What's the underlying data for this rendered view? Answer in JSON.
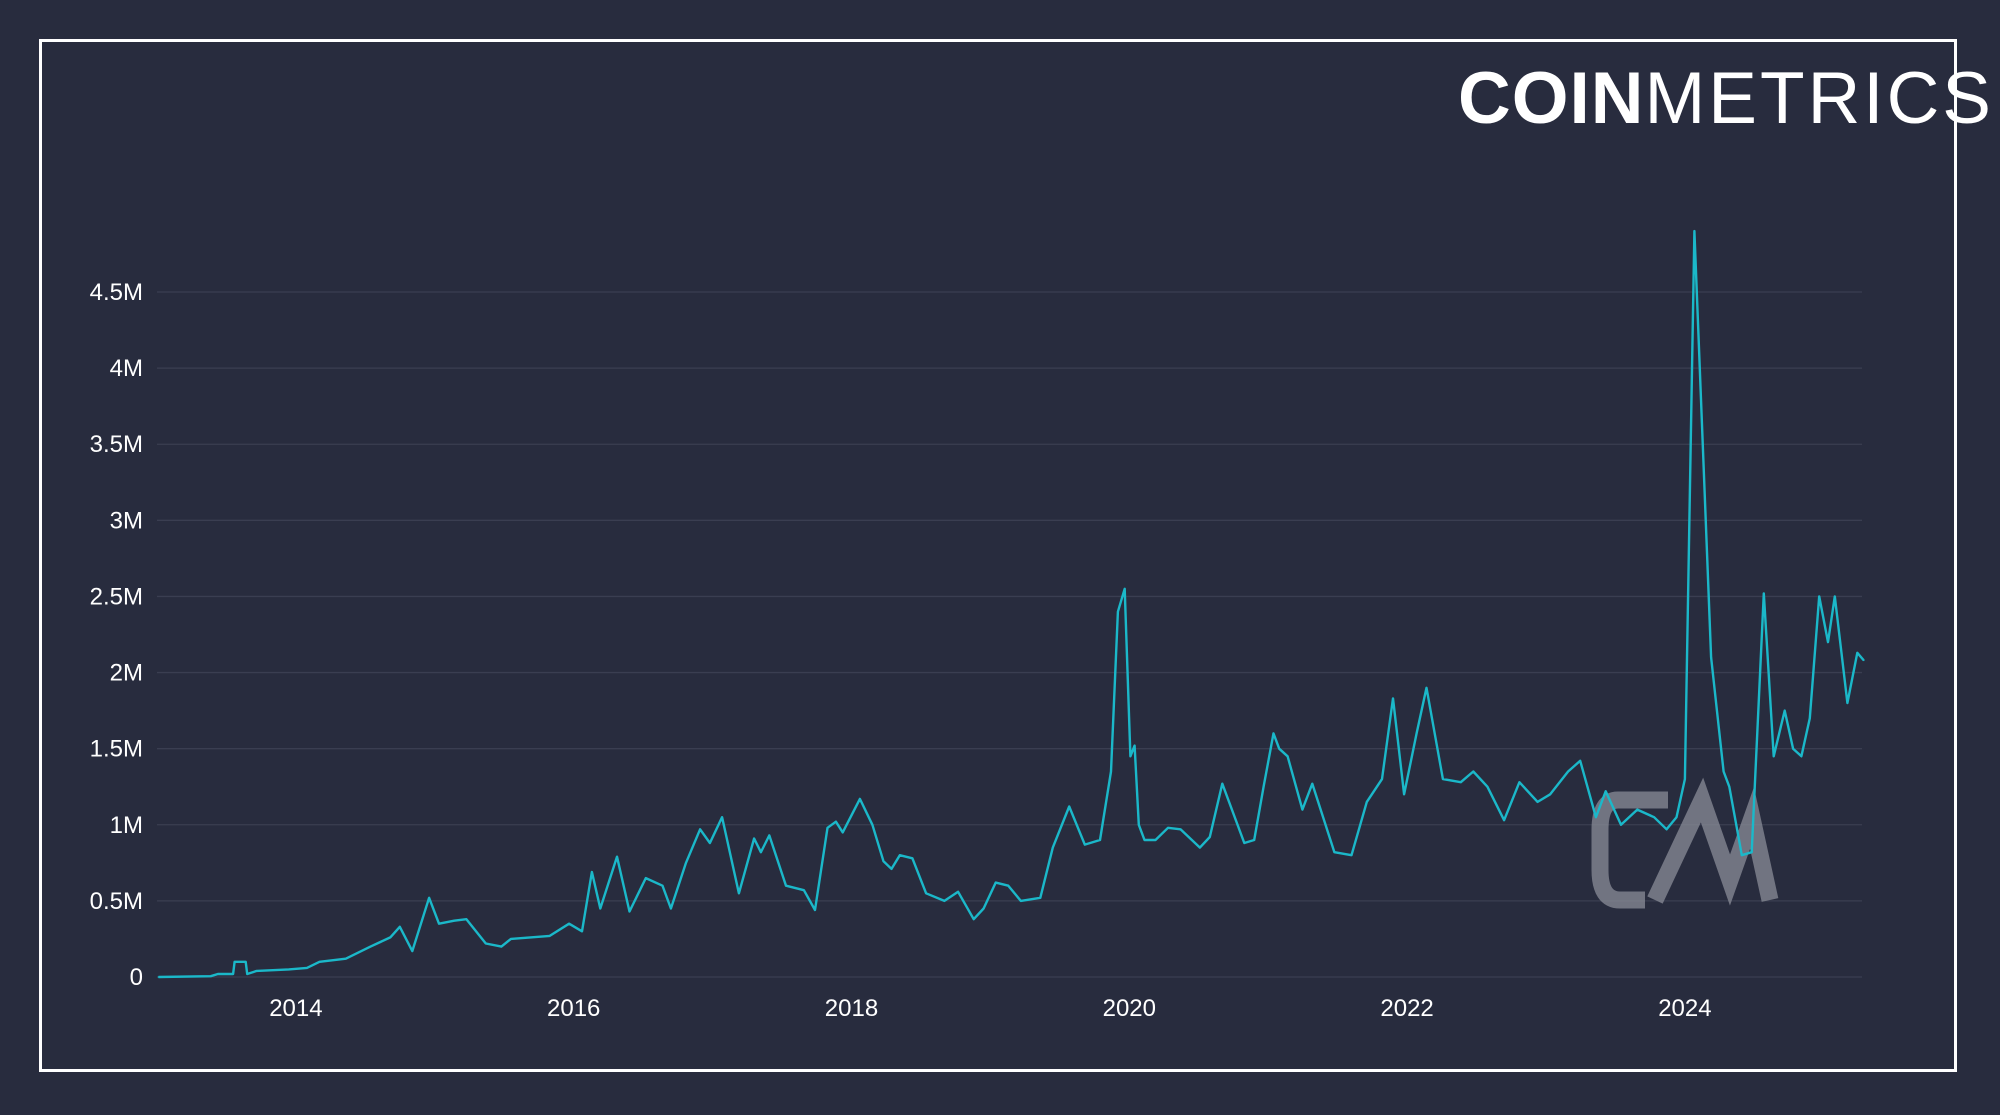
{
  "brand": {
    "logo_bold": "COIN",
    "logo_light": "METRICS",
    "watermark": "CM"
  },
  "colors": {
    "background": "#282c3e",
    "line": "#1bb8c9",
    "grid": "#3a3e51",
    "text": "#ffffff",
    "watermark": "#8a8d98"
  },
  "chart_data": {
    "type": "line",
    "title": "",
    "xlabel": "",
    "ylabel": "",
    "xlim": [
      "2013-01-01",
      "2025-04-16"
    ],
    "ylim": [
      0,
      5000000
    ],
    "grid": true,
    "legend": "none",
    "x_ticks": [
      "2014",
      "2016",
      "2018",
      "2020",
      "2022",
      "2024"
    ],
    "y_ticks": [
      {
        "value": 0,
        "label": "0"
      },
      {
        "value": 500000,
        "label": "0.5M"
      },
      {
        "value": 1000000,
        "label": "1M"
      },
      {
        "value": 1500000,
        "label": "1.5M"
      },
      {
        "value": 2000000,
        "label": "2M"
      },
      {
        "value": 2500000,
        "label": "2.5M"
      },
      {
        "value": 3000000,
        "label": "3M"
      },
      {
        "value": 3500000,
        "label": "3.5M"
      },
      {
        "value": 4000000,
        "label": "4M"
      },
      {
        "value": 4500000,
        "label": "4.5M"
      }
    ],
    "series": [
      {
        "x": [
          "2013-01-05",
          "2013-05-22",
          "2013-06-10",
          "2013-07-20",
          "2013-07-24",
          "2013-08-22",
          "2013-08-26",
          "2013-09-20",
          "2013-12-13",
          "2014-01-30",
          "2014-03-04",
          "2014-05-12",
          "2014-07-16",
          "2014-09-06",
          "2014-10-01",
          "2014-11-03",
          "2014-12-17",
          "2015-01-12",
          "2015-02-21",
          "2015-03-25",
          "2015-05-15",
          "2015-06-25",
          "2015-07-20",
          "2015-10-30",
          "2015-12-20",
          "2016-01-23",
          "2016-02-18",
          "2016-03-11",
          "2016-04-24",
          "2016-05-27",
          "2016-07-09",
          "2016-08-22",
          "2016-09-13",
          "2016-10-23",
          "2016-11-29",
          "2016-12-25",
          "2017-01-26",
          "2017-03-11",
          "2017-04-20",
          "2017-05-08",
          "2017-05-30",
          "2017-07-13",
          "2017-08-29",
          "2017-09-27",
          "2017-10-30",
          "2017-11-21",
          "2017-12-09",
          "2018-01-23",
          "2018-02-25",
          "2018-03-26",
          "2018-04-16",
          "2018-05-08",
          "2018-06-10",
          "2018-07-16",
          "2018-09-02",
          "2018-10-08",
          "2018-11-18",
          "2018-12-14",
          "2019-01-15",
          "2019-02-17",
          "2019-03-22",
          "2019-05-12",
          "2019-06-14",
          "2019-07-27",
          "2019-09-06",
          "2019-10-16",
          "2019-11-14",
          "2019-12-02",
          "2019-12-20",
          "2020-01-04",
          "2020-01-15",
          "2020-01-26",
          "2020-02-10",
          "2020-03-10",
          "2020-04-12",
          "2020-05-15",
          "2020-07-05",
          "2020-07-31",
          "2020-09-02",
          "2020-10-30",
          "2020-11-25",
          "2020-12-20",
          "2021-01-15",
          "2021-01-30",
          "2021-02-21",
          "2021-04-01",
          "2021-04-27",
          "2021-06-24",
          "2021-08-08",
          "2021-09-17",
          "2021-10-27",
          "2021-11-25",
          "2021-12-24",
          "2022-01-26",
          "2022-02-21",
          "2022-04-05",
          "2022-05-22",
          "2022-06-24",
          "2022-07-31",
          "2022-09-13",
          "2022-10-23",
          "2022-12-10",
          "2023-01-12",
          "2023-02-28",
          "2023-04-01",
          "2023-05-12",
          "2023-06-07",
          "2023-07-17",
          "2023-08-29",
          "2023-10-12",
          "2023-11-14",
          "2023-12-10",
          "2024-01-01",
          "2024-01-26",
          "2024-03-10",
          "2024-04-12",
          "2024-04-27",
          "2024-05-30",
          "2024-06-25",
          "2024-07-27",
          "2024-08-22",
          "2024-09-20",
          "2024-10-12",
          "2024-11-03",
          "2024-11-25",
          "2024-12-20",
          "2025-01-12",
          "2025-01-30",
          "2025-03-04",
          "2025-03-30",
          "2025-04-16"
        ],
        "y": [
          0,
          5000,
          20000,
          20000,
          100000,
          100000,
          20000,
          40000,
          50000,
          60000,
          100000,
          120000,
          200000,
          260000,
          330000,
          170000,
          520000,
          350000,
          370000,
          380000,
          220000,
          200000,
          250000,
          270000,
          350000,
          300000,
          690000,
          450000,
          790000,
          430000,
          650000,
          600000,
          450000,
          750000,
          970000,
          880000,
          1050000,
          550000,
          910000,
          820000,
          930000,
          600000,
          570000,
          440000,
          980000,
          1020000,
          950000,
          1170000,
          1000000,
          760000,
          710000,
          800000,
          780000,
          550000,
          500000,
          560000,
          380000,
          450000,
          620000,
          600000,
          500000,
          520000,
          850000,
          1120000,
          870000,
          900000,
          1350000,
          2400000,
          2550000,
          1450000,
          1520000,
          1000000,
          900000,
          900000,
          980000,
          970000,
          850000,
          920000,
          1270000,
          880000,
          900000,
          1250000,
          1600000,
          1500000,
          1450000,
          1100000,
          1270000,
          820000,
          800000,
          1150000,
          1300000,
          1830000,
          1200000,
          1600000,
          1900000,
          1300000,
          1280000,
          1350000,
          1250000,
          1030000,
          1280000,
          1150000,
          1200000,
          1350000,
          1420000,
          1050000,
          1220000,
          1000000,
          1100000,
          1050000,
          970000,
          1050000,
          1300000,
          4900000,
          2100000,
          1350000,
          1250000,
          800000,
          820000,
          2520000,
          1450000,
          1750000,
          1500000,
          1450000,
          1700000,
          2500000,
          2200000,
          2500000,
          1800000,
          2130000,
          2080000
        ]
      }
    ]
  }
}
